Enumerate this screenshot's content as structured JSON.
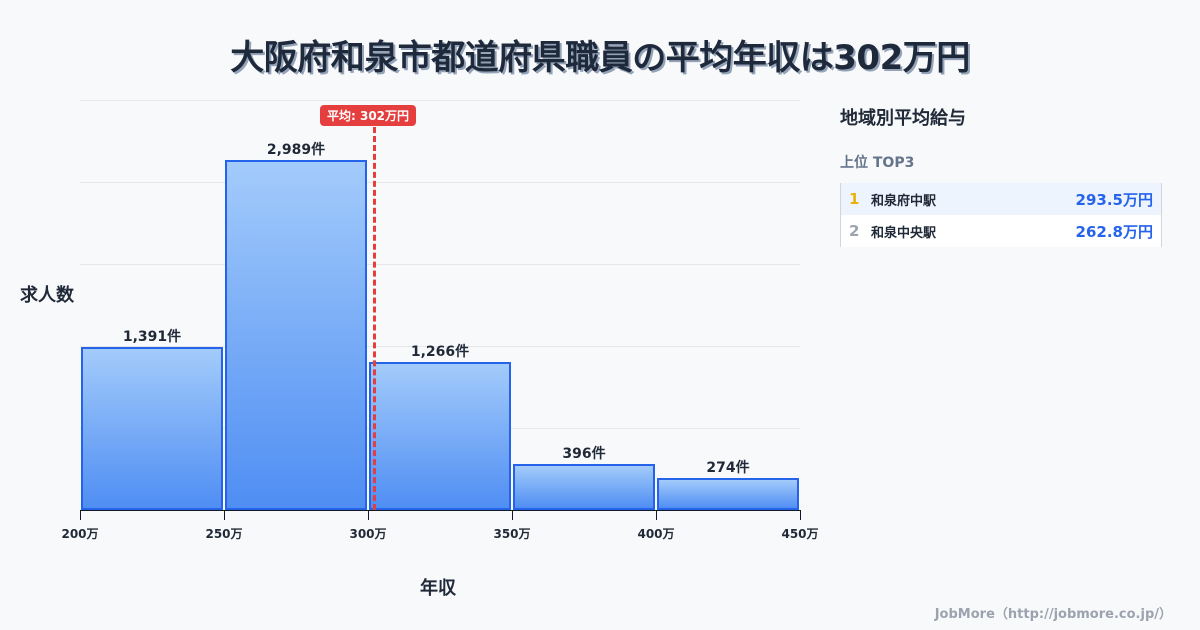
{
  "title": "大阪府和泉市都道府県職員の平均年収は302万円",
  "chart_data": {
    "type": "bar",
    "title": "大阪府和泉市都道府県職員の平均年収は302万円",
    "xlabel": "年収",
    "ylabel": "求人数",
    "categories": [
      "200万-250万",
      "250万-300万",
      "300万-350万",
      "350万-400万",
      "400万-450万"
    ],
    "x_ticks": [
      "200万",
      "250万",
      "300万",
      "350万",
      "400万",
      "450万"
    ],
    "values": [
      1391,
      2989,
      1266,
      396,
      274
    ],
    "value_labels": [
      "1,391件",
      "2,989件",
      "1,266件",
      "396件",
      "274件"
    ],
    "average": {
      "value": 302,
      "label": "平均: 302万円",
      "color": "#e53e3e"
    },
    "ylim": [
      0,
      3500
    ],
    "grid": true,
    "bar_color": "#4f8ef3",
    "bar_border_color": "#2563eb"
  },
  "sidebar": {
    "title": "地域別平均給与",
    "subtitle": "上位 TOP3",
    "ranks": [
      {
        "rank": "1",
        "name": "和泉府中駅",
        "value": "293.5万円",
        "rank_color": "#eab308"
      },
      {
        "rank": "2",
        "name": "和泉中央駅",
        "value": "262.8万円",
        "rank_color": "#9ca3af"
      }
    ]
  },
  "footer": "JobMore（http://jobmore.co.jp/）"
}
